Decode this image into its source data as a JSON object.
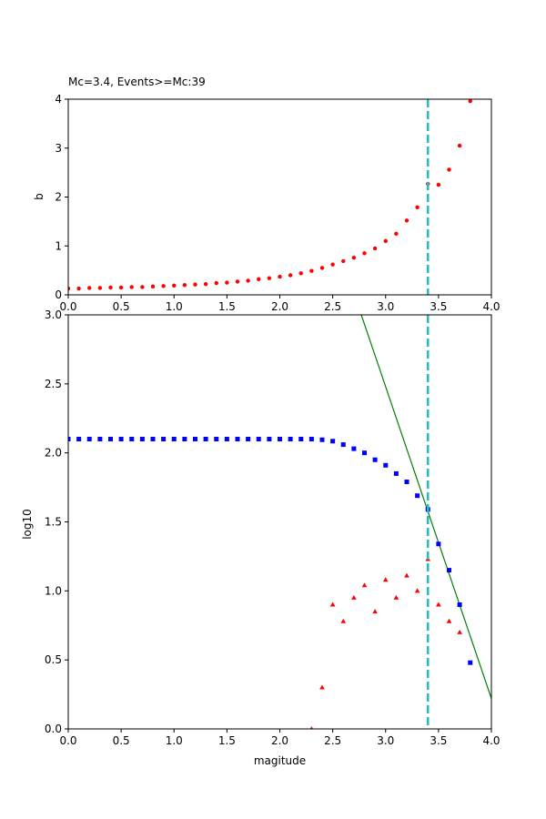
{
  "chart_data": [
    {
      "type": "scatter",
      "title": "Mc=3.4, Events>=Mc:39",
      "xlabel": "",
      "ylabel": "b",
      "xlim": [
        0,
        4.0
      ],
      "ylim": [
        0,
        4
      ],
      "xticks": [
        "0.0",
        "0.5",
        "1.0",
        "1.5",
        "2.0",
        "2.5",
        "3.0",
        "3.5",
        "4.0"
      ],
      "yticks": [
        "0",
        "1",
        "2",
        "3",
        "4"
      ],
      "grid": false,
      "series": [
        {
          "color": "#ff0000",
          "marker": "circle",
          "x": [
            0.0,
            0.1,
            0.2,
            0.3,
            0.4,
            0.5,
            0.6,
            0.7,
            0.8,
            0.9,
            1.0,
            1.1,
            1.2,
            1.3,
            1.4,
            1.5,
            1.6,
            1.7,
            1.8,
            1.9,
            2.0,
            2.1,
            2.2,
            2.3,
            2.4,
            2.5,
            2.6,
            2.7,
            2.8,
            2.9,
            3.0,
            3.1,
            3.2,
            3.3,
            3.4,
            3.5,
            3.6,
            3.7,
            3.8
          ],
          "y": [
            0.13,
            0.13,
            0.14,
            0.14,
            0.15,
            0.15,
            0.16,
            0.16,
            0.17,
            0.18,
            0.19,
            0.2,
            0.21,
            0.22,
            0.24,
            0.25,
            0.27,
            0.29,
            0.32,
            0.34,
            0.37,
            0.4,
            0.44,
            0.49,
            0.55,
            0.62,
            0.69,
            0.76,
            0.85,
            0.95,
            1.1,
            1.25,
            1.52,
            1.79,
            2.27,
            2.25,
            2.56,
            3.05,
            3.96
          ]
        }
      ],
      "vline": {
        "x": 3.4,
        "color": "#1ebfbf",
        "style": "dashed"
      }
    },
    {
      "type": "scatter",
      "title": "",
      "xlabel": "magitude",
      "ylabel": "log10",
      "xlim": [
        0,
        4.0
      ],
      "ylim": [
        0,
        3.0
      ],
      "xticks": [
        "0.0",
        "0.5",
        "1.0",
        "1.5",
        "2.0",
        "2.5",
        "3.0",
        "3.5",
        "4.0"
      ],
      "yticks": [
        "0.0",
        "0.5",
        "1.0",
        "1.5",
        "2.0",
        "2.5",
        "3.0"
      ],
      "grid": false,
      "series": [
        {
          "color": "#0000ff",
          "marker": "square",
          "x": [
            0.0,
            0.1,
            0.2,
            0.3,
            0.4,
            0.5,
            0.6,
            0.7,
            0.8,
            0.9,
            1.0,
            1.1,
            1.2,
            1.3,
            1.4,
            1.5,
            1.6,
            1.7,
            1.8,
            1.9,
            2.0,
            2.1,
            2.2,
            2.3,
            2.4,
            2.5,
            2.6,
            2.7,
            2.8,
            2.9,
            3.0,
            3.1,
            3.2,
            3.3,
            3.4,
            3.5,
            3.6,
            3.7,
            3.8
          ],
          "y": [
            2.1,
            2.1,
            2.1,
            2.1,
            2.1,
            2.1,
            2.1,
            2.1,
            2.1,
            2.1,
            2.1,
            2.1,
            2.1,
            2.1,
            2.1,
            2.1,
            2.1,
            2.1,
            2.1,
            2.1,
            2.1,
            2.1,
            2.1,
            2.1,
            2.095,
            2.085,
            2.06,
            2.03,
            2.0,
            1.95,
            1.91,
            1.85,
            1.79,
            1.69,
            1.59,
            1.34,
            1.15,
            0.9,
            0.48
          ]
        },
        {
          "color": "#ff0000",
          "marker": "triangle",
          "x": [
            2.3,
            2.4,
            2.5,
            2.6,
            2.7,
            2.8,
            2.9,
            3.0,
            3.1,
            3.2,
            3.3,
            3.4,
            3.5,
            3.6,
            3.7
          ],
          "y": [
            0.0,
            0.3,
            0.9,
            0.78,
            0.95,
            1.04,
            0.85,
            1.08,
            0.95,
            1.11,
            1.0,
            1.23,
            0.9,
            0.78,
            0.7
          ]
        }
      ],
      "fit_line": {
        "x": [
          2.77,
          4.0
        ],
        "y": [
          3.0,
          0.22
        ],
        "color": "#008000"
      },
      "vline": {
        "x": 3.4,
        "color": "#1ebfbf",
        "style": "dashed"
      }
    }
  ]
}
